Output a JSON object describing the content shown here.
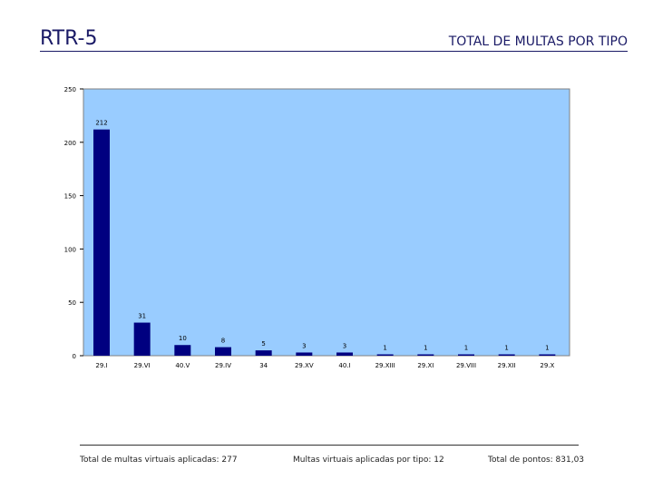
{
  "header": {
    "code": "RTR-5",
    "title": "TOTAL DE MULTAS POR TIPO"
  },
  "chart_data": {
    "type": "bar",
    "categories": [
      "29.I",
      "29.VI",
      "40.V",
      "29.IV",
      "34",
      "29.XV",
      "40.I",
      "29.XIII",
      "29.XI",
      "29.VIII",
      "29.XII",
      "29.X"
    ],
    "values": [
      212,
      31,
      10,
      8,
      5,
      3,
      3,
      1,
      1,
      1,
      1,
      1
    ],
    "data_labels": [
      "212",
      "31",
      "10",
      "8",
      "5",
      "3",
      "3",
      "1",
      "1",
      "1",
      "1",
      "1"
    ],
    "y_ticks": [
      "0",
      "50",
      "100",
      "150",
      "200",
      "250"
    ],
    "ylim": [
      0,
      250
    ],
    "title": "",
    "xlabel": "",
    "ylabel": "",
    "grid": false,
    "colors": {
      "plot_background": "#99ccff",
      "bar": "#000080",
      "frame": "#808080"
    }
  },
  "footer": {
    "total_virtual": "Total de multas virtuais aplicadas: 277",
    "by_type": "Multas virtuais aplicadas por tipo: 12",
    "total_points": "Total de pontos: 831,03"
  }
}
